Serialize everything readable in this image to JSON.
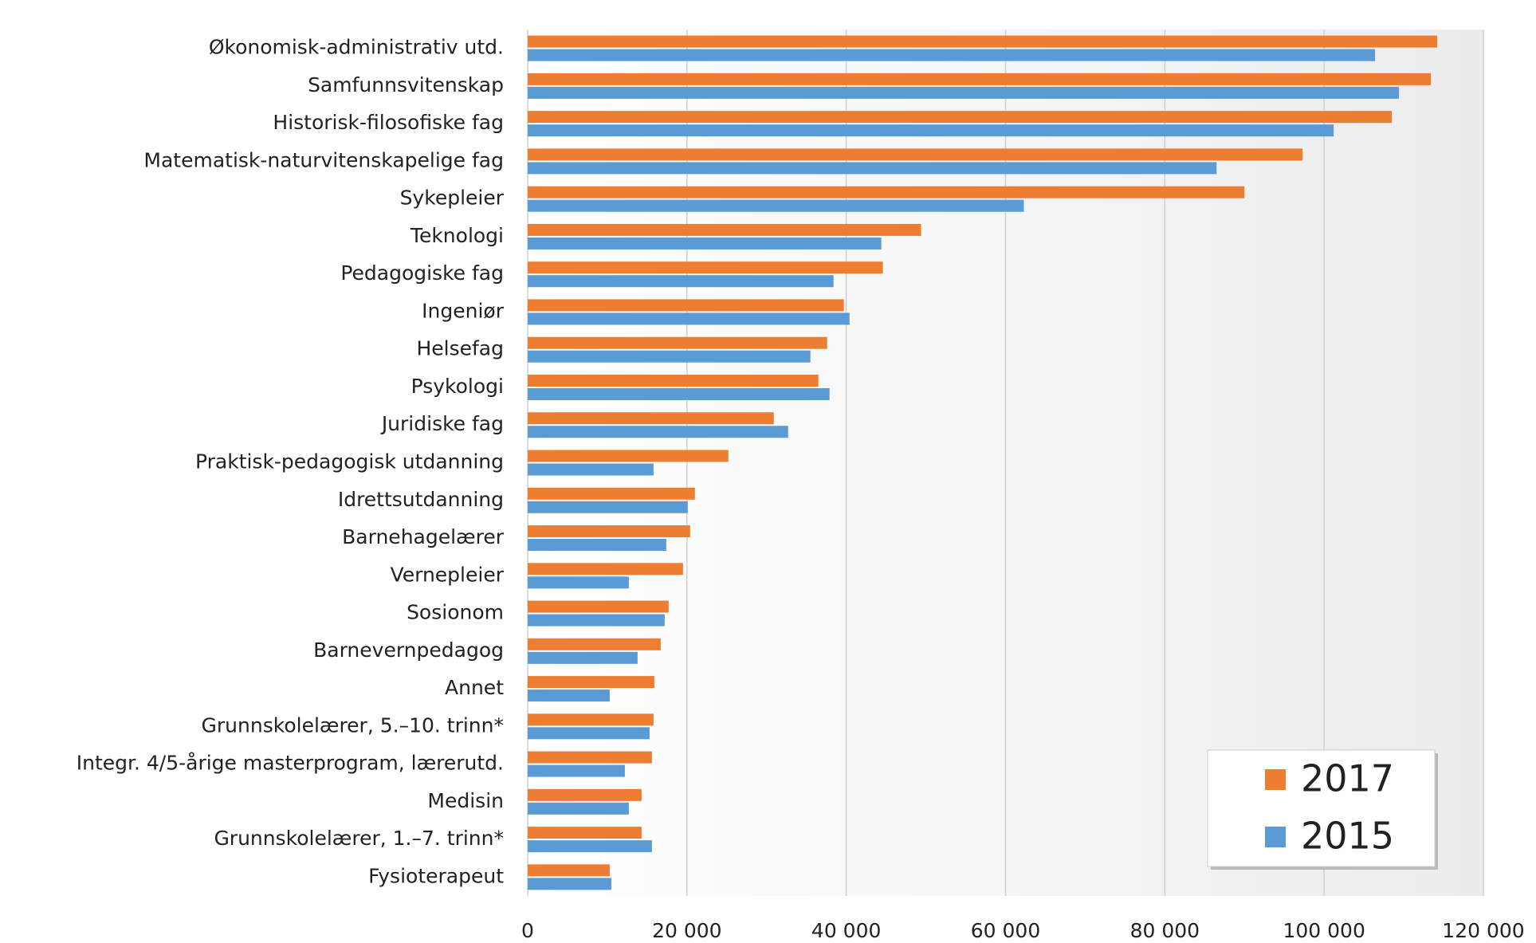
{
  "chart_data": {
    "type": "bar",
    "orientation": "horizontal",
    "categories": [
      "Økonomisk-administrativ utd.",
      "Samfunnsvitenskap",
      "Historisk-filosofiske fag",
      "Matematisk-naturvitenskapelige fag",
      "Sykepleier",
      "Teknologi",
      "Pedagogiske fag",
      "Ingeniør",
      "Helsefag",
      "Psykologi",
      "Juridiske fag",
      "Praktisk-pedagogisk utdanning",
      "Idrettsutdanning",
      "Barnehagelærer",
      "Vernepleier",
      "Sosionom",
      "Barnevernpedagog",
      "Annet",
      "Grunnskolelærer, 5.–10. trinn*",
      "Integr. 4/5-årige masterprogram, lærerutd.",
      "Medisin",
      "Grunnskolelærer, 1.–7. trinn*",
      "Fysioterapeut"
    ],
    "series": [
      {
        "name": "2017",
        "color": "#ed7d31",
        "values": [
          114200,
          113400,
          108500,
          97300,
          90000,
          49400,
          44600,
          39700,
          37600,
          36500,
          30900,
          25200,
          21000,
          20400,
          19500,
          17700,
          16700,
          15900,
          15800,
          15600,
          14300,
          14300,
          10300
        ]
      },
      {
        "name": "2015",
        "color": "#5b9bd5",
        "values": [
          106400,
          109400,
          101200,
          86500,
          62300,
          44400,
          38400,
          40400,
          35500,
          37900,
          32700,
          15800,
          20100,
          17400,
          12700,
          17200,
          13800,
          10300,
          15300,
          12200,
          12700,
          15600,
          10500
        ]
      }
    ],
    "xlim": [
      0,
      120000
    ],
    "xticks": [
      0,
      {
        "value": 20000,
        "label": "20 000"
      },
      {
        "value": 40000,
        "label": "40 000"
      },
      {
        "value": 60000,
        "label": "60 000"
      },
      {
        "value": 80000,
        "label": "80 000"
      },
      {
        "value": 100000,
        "label": "100 000"
      },
      {
        "value": 120000,
        "label": "120 000"
      }
    ],
    "grid": true,
    "legend": "lower-right"
  }
}
